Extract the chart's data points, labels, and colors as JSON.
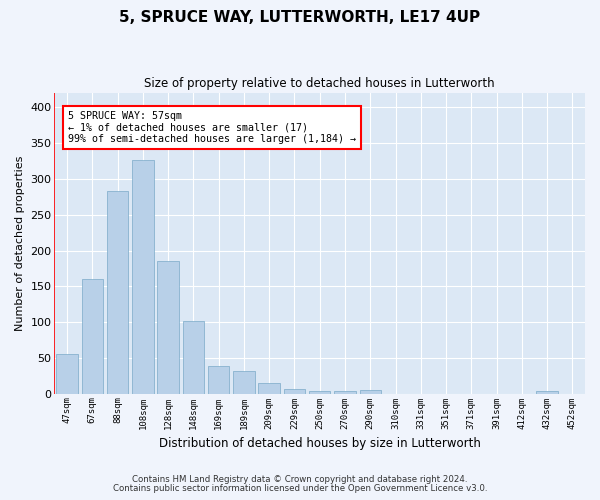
{
  "title": "5, SPRUCE WAY, LUTTERWORTH, LE17 4UP",
  "subtitle": "Size of property relative to detached houses in Lutterworth",
  "xlabel": "Distribution of detached houses by size in Lutterworth",
  "ylabel": "Number of detached properties",
  "bar_color": "#b8d0e8",
  "bar_edge_color": "#7aaac8",
  "axes_bg_color": "#dce8f5",
  "fig_bg_color": "#f0f4fc",
  "grid_color": "#ffffff",
  "categories": [
    "47sqm",
    "67sqm",
    "88sqm",
    "108sqm",
    "128sqm",
    "148sqm",
    "169sqm",
    "189sqm",
    "209sqm",
    "229sqm",
    "250sqm",
    "270sqm",
    "290sqm",
    "310sqm",
    "331sqm",
    "351sqm",
    "371sqm",
    "391sqm",
    "412sqm",
    "432sqm",
    "452sqm"
  ],
  "values": [
    55,
    160,
    283,
    326,
    185,
    102,
    38,
    32,
    15,
    7,
    4,
    4,
    5,
    0,
    0,
    0,
    0,
    0,
    0,
    4,
    0
  ],
  "ylim": [
    0,
    420
  ],
  "yticks": [
    0,
    50,
    100,
    150,
    200,
    250,
    300,
    350,
    400
  ],
  "annotation_text": "5 SPRUCE WAY: 57sqm\n← 1% of detached houses are smaller (17)\n99% of semi-detached houses are larger (1,184) →",
  "footer_line1": "Contains HM Land Registry data © Crown copyright and database right 2024.",
  "footer_line2": "Contains public sector information licensed under the Open Government Licence v3.0."
}
